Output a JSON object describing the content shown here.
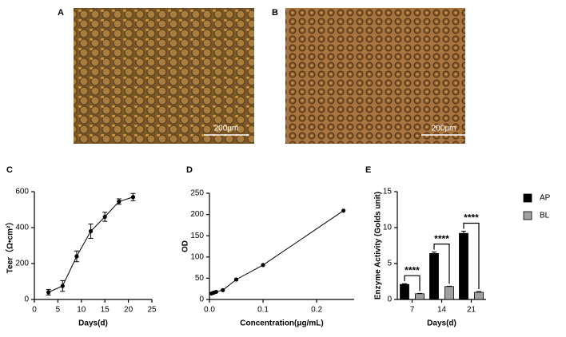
{
  "panels": {
    "A": {
      "label": "A",
      "scale_bar": "200μm"
    },
    "B": {
      "label": "B",
      "scale_bar": "200μm"
    }
  },
  "chart_data": [
    {
      "type": "line",
      "panel": "C",
      "xlabel": "Days(d)",
      "ylabel": "Teer（Ω•cm²）",
      "x": [
        3,
        6,
        9,
        12,
        15,
        18,
        21
      ],
      "values": [
        40,
        75,
        240,
        380,
        460,
        545,
        570
      ],
      "errors": [
        15,
        30,
        30,
        40,
        25,
        15,
        20
      ],
      "color": "#000000",
      "xlim": [
        0,
        25
      ],
      "xticks": [
        0,
        5,
        10,
        15,
        20,
        25
      ],
      "ylim": [
        0,
        600
      ],
      "yticks": [
        0,
        200,
        400,
        600
      ]
    },
    {
      "type": "line",
      "panel": "D",
      "xlabel": "Concentration(μg/mL)",
      "ylabel": "OD",
      "x": [
        0.004,
        0.008,
        0.0125,
        0.025,
        0.05,
        0.1,
        0.25
      ],
      "values": [
        14,
        16,
        18,
        22,
        47,
        81,
        209
      ],
      "color": "#000000",
      "xlim": [
        0,
        0.27
      ],
      "xticks": [
        {
          "value": 0,
          "label": "0.0"
        },
        {
          "value": 0.1,
          "label": "0.1"
        },
        {
          "value": 0.2,
          "label": "0.2"
        }
      ],
      "ylim": [
        0,
        250
      ],
      "yticks": [
        0,
        50,
        100,
        150,
        200,
        250
      ]
    },
    {
      "type": "bar",
      "panel": "E",
      "xlabel": "Days(d)",
      "ylabel": "Enzyme Activity (Golds unit)",
      "categories": [
        "7",
        "14",
        "21"
      ],
      "series": [
        {
          "name": "AP",
          "color": "#000000",
          "values": [
            2.1,
            6.4,
            9.2
          ],
          "errors": [
            0.1,
            0.2,
            0.3
          ]
        },
        {
          "name": "BL",
          "color": "#a0a0a0",
          "values": [
            0.8,
            1.8,
            1.0
          ],
          "errors": [
            0.05,
            0.05,
            0.1
          ]
        }
      ],
      "annotations": [
        "****",
        "****",
        "****"
      ],
      "ylim": [
        0,
        15
      ],
      "yticks": [
        0,
        5,
        10,
        15
      ]
    }
  ]
}
